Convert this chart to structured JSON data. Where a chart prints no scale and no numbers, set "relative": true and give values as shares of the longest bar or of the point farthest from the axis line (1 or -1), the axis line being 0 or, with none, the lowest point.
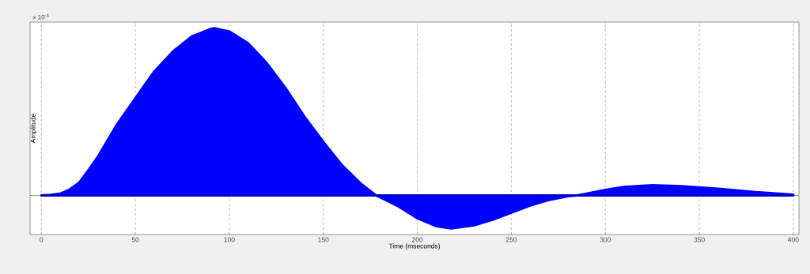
{
  "chart_data": {
    "type": "area",
    "relative": true,
    "xlabel": "Time (mseconds)",
    "ylabel": "Amplitude",
    "annotations": [
      "x 10$^{-4}$"
    ],
    "xlim": [
      -6,
      403
    ],
    "xticks": [
      0,
      50,
      100,
      150,
      200,
      250,
      300,
      350,
      400
    ],
    "grid": "x",
    "color": "#0000ff",
    "x": [
      0,
      5,
      10,
      15,
      20,
      25,
      30,
      40,
      50,
      60,
      70,
      80,
      90,
      92,
      100,
      110,
      120,
      130,
      140,
      150,
      160,
      170,
      178,
      180,
      190,
      200,
      210,
      218,
      230,
      240,
      250,
      260,
      270,
      280,
      285,
      290,
      300,
      310,
      325,
      340,
      360,
      380,
      400
    ],
    "values": [
      0,
      0.003,
      0.01,
      0.035,
      0.075,
      0.15,
      0.23,
      0.42,
      0.58,
      0.74,
      0.86,
      0.95,
      0.995,
      1.0,
      0.98,
      0.91,
      0.79,
      0.64,
      0.47,
      0.32,
      0.18,
      0.07,
      0,
      -0.01,
      -0.066,
      -0.137,
      -0.184,
      -0.198,
      -0.18,
      -0.146,
      -0.104,
      -0.061,
      -0.028,
      -0.005,
      0,
      0.01,
      0.033,
      0.05,
      0.061,
      0.055,
      0.04,
      0.02,
      0.005
    ]
  }
}
